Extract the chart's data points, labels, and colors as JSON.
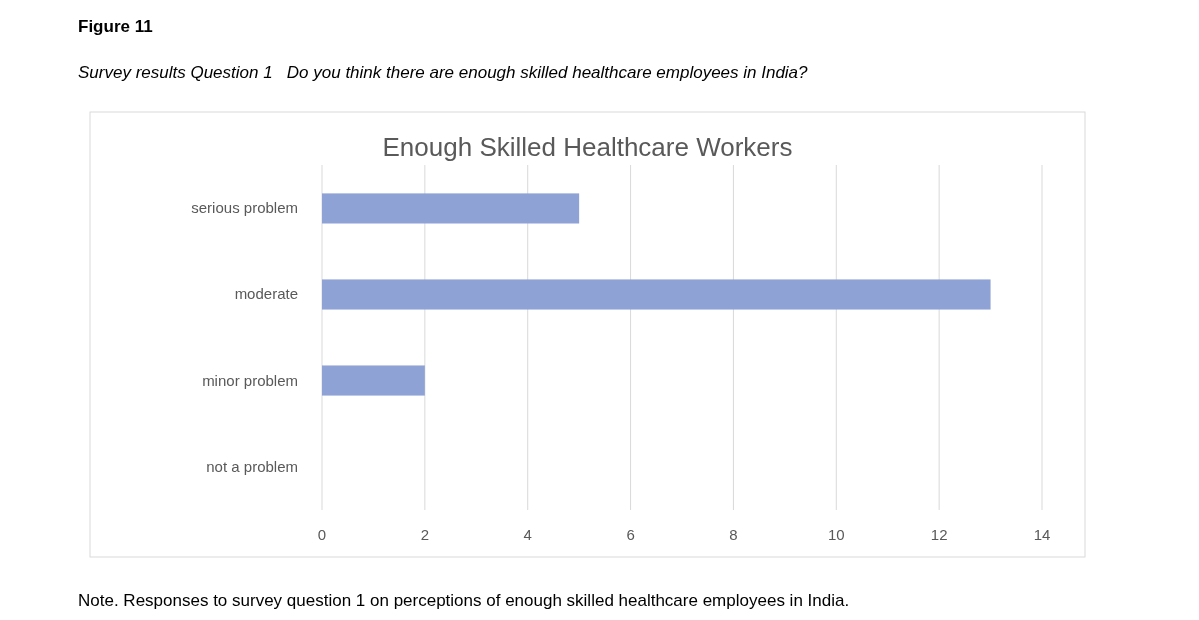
{
  "chart_data": {
    "type": "bar",
    "orientation": "horizontal",
    "title": "Enough Skilled Healthcare Workers",
    "subtitle": "Survey results Question 1   Do you think there are enough skilled healthcare employees in India?",
    "annotations": [
      "Figure 11",
      "Note. Responses to survey question 1 on perceptions of enough skilled healthcare employees in India."
    ],
    "categories": [
      "serious problem",
      "moderate",
      "minor problem",
      "not a problem"
    ],
    "values": [
      5,
      13,
      2,
      0
    ],
    "color": "#8fa2d6",
    "xlim": [
      0,
      14
    ],
    "xticks": [
      0,
      2,
      4,
      6,
      8,
      10,
      12,
      14
    ],
    "grid": "x"
  }
}
